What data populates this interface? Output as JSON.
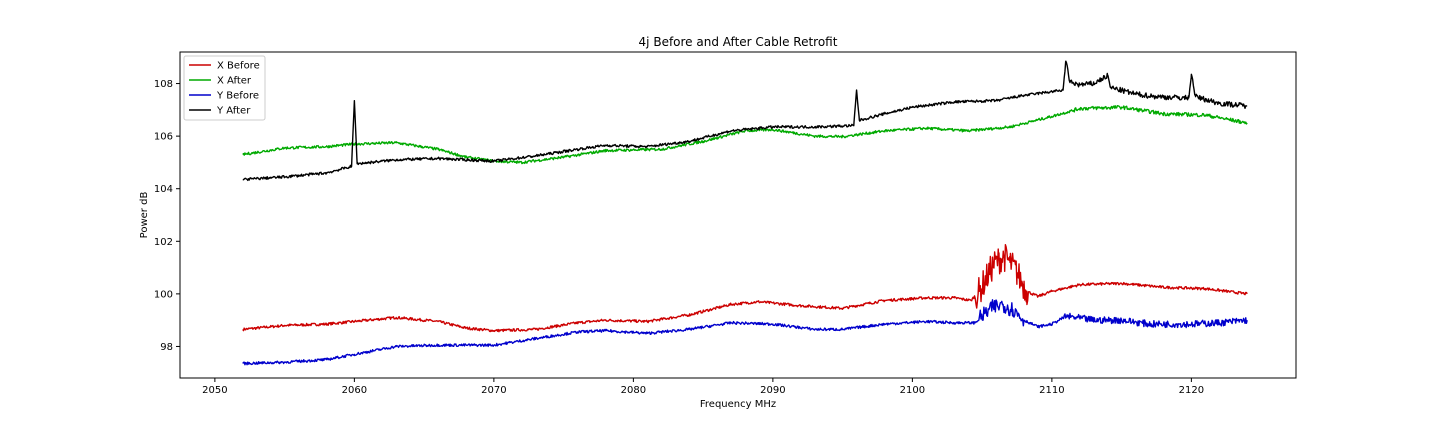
{
  "chart_data": {
    "type": "line",
    "title": "4j Before and After Cable Retrofit",
    "xlabel": "Frequency MHz",
    "ylabel": "Power dB",
    "xlim": [
      2047.5,
      2127.5
    ],
    "ylim": [
      96.8,
      109.2
    ],
    "xticks": [
      2050,
      2060,
      2070,
      2080,
      2090,
      2100,
      2110,
      2120
    ],
    "yticks": [
      98,
      100,
      102,
      104,
      106,
      108
    ],
    "grid": false,
    "legend_position": "upper-left",
    "series": [
      {
        "name": "X Before",
        "color": "#cc0000",
        "points": [
          [
            2052,
            98.65
          ],
          [
            2055,
            98.8
          ],
          [
            2058,
            98.85
          ],
          [
            2060,
            98.95
          ],
          [
            2063,
            99.1
          ],
          [
            2066,
            98.95
          ],
          [
            2068,
            98.7
          ],
          [
            2070,
            98.6
          ],
          [
            2073,
            98.65
          ],
          [
            2076,
            98.9
          ],
          [
            2078,
            99.0
          ],
          [
            2081,
            98.95
          ],
          [
            2084,
            99.2
          ],
          [
            2087,
            99.6
          ],
          [
            2089,
            99.7
          ],
          [
            2092,
            99.55
          ],
          [
            2095,
            99.45
          ],
          [
            2098,
            99.75
          ],
          [
            2101,
            99.85
          ],
          [
            2103,
            99.85
          ],
          [
            2104.2,
            99.75
          ],
          [
            2104.8,
            100.1
          ],
          [
            2105.3,
            100.6
          ],
          [
            2105.8,
            101.1
          ],
          [
            2106.2,
            101.3
          ],
          [
            2106.6,
            101.4
          ],
          [
            2107,
            101.2
          ],
          [
            2107.5,
            100.8
          ],
          [
            2108.2,
            100.1
          ],
          [
            2109,
            99.9
          ],
          [
            2110,
            100.1
          ],
          [
            2112,
            100.35
          ],
          [
            2115,
            100.4
          ],
          [
            2118,
            100.25
          ],
          [
            2121,
            100.2
          ],
          [
            2124,
            100.0
          ]
        ]
      },
      {
        "name": "X After",
        "color": "#00aa00",
        "points": [
          [
            2052,
            105.3
          ],
          [
            2055,
            105.55
          ],
          [
            2058,
            105.6
          ],
          [
            2060,
            105.7
          ],
          [
            2063,
            105.75
          ],
          [
            2066,
            105.5
          ],
          [
            2068,
            105.2
          ],
          [
            2070,
            105.05
          ],
          [
            2072,
            105.0
          ],
          [
            2075,
            105.2
          ],
          [
            2078,
            105.45
          ],
          [
            2082,
            105.5
          ],
          [
            2085,
            105.8
          ],
          [
            2088,
            106.2
          ],
          [
            2090,
            106.25
          ],
          [
            2093,
            106.0
          ],
          [
            2095,
            105.98
          ],
          [
            2098,
            106.2
          ],
          [
            2101,
            106.3
          ],
          [
            2104,
            106.2
          ],
          [
            2107,
            106.35
          ],
          [
            2110,
            106.75
          ],
          [
            2112,
            107.05
          ],
          [
            2115,
            107.1
          ],
          [
            2118,
            106.85
          ],
          [
            2121,
            106.8
          ],
          [
            2124,
            106.5
          ]
        ]
      },
      {
        "name": "Y Before",
        "color": "#0000cc",
        "points": [
          [
            2052,
            97.35
          ],
          [
            2055,
            97.4
          ],
          [
            2058,
            97.5
          ],
          [
            2060,
            97.7
          ],
          [
            2063,
            98.0
          ],
          [
            2066,
            98.05
          ],
          [
            2070,
            98.05
          ],
          [
            2073,
            98.3
          ],
          [
            2076,
            98.55
          ],
          [
            2078,
            98.6
          ],
          [
            2081,
            98.5
          ],
          [
            2084,
            98.65
          ],
          [
            2087,
            98.9
          ],
          [
            2090,
            98.85
          ],
          [
            2093,
            98.65
          ],
          [
            2095,
            98.65
          ],
          [
            2098,
            98.85
          ],
          [
            2101,
            98.95
          ],
          [
            2103,
            98.9
          ],
          [
            2104.5,
            98.9
          ],
          [
            2105.2,
            99.25
          ],
          [
            2105.8,
            99.5
          ],
          [
            2106.5,
            99.6
          ],
          [
            2107.2,
            99.4
          ],
          [
            2108,
            99.0
          ],
          [
            2109,
            98.75
          ],
          [
            2110,
            98.85
          ],
          [
            2111,
            99.15
          ],
          [
            2113,
            99.0
          ],
          [
            2115,
            99.0
          ],
          [
            2117,
            98.85
          ],
          [
            2120,
            98.85
          ],
          [
            2122,
            98.9
          ],
          [
            2124,
            99.0
          ]
        ]
      },
      {
        "name": "Y After",
        "color": "#000000",
        "points": [
          [
            2052,
            104.35
          ],
          [
            2055,
            104.45
          ],
          [
            2058,
            104.6
          ],
          [
            2059.8,
            104.85
          ],
          [
            2060,
            107.35
          ],
          [
            2060.2,
            104.95
          ],
          [
            2063,
            105.1
          ],
          [
            2066,
            105.15
          ],
          [
            2070,
            105.05
          ],
          [
            2073,
            105.25
          ],
          [
            2076,
            105.5
          ],
          [
            2078,
            105.65
          ],
          [
            2081,
            105.6
          ],
          [
            2084,
            105.8
          ],
          [
            2087,
            106.2
          ],
          [
            2090,
            106.35
          ],
          [
            2093,
            106.35
          ],
          [
            2095.8,
            106.4
          ],
          [
            2096,
            107.75
          ],
          [
            2096.2,
            106.6
          ],
          [
            2098,
            106.85
          ],
          [
            2100,
            107.1
          ],
          [
            2103,
            107.3
          ],
          [
            2106,
            107.35
          ],
          [
            2108,
            107.55
          ],
          [
            2110.8,
            107.75
          ],
          [
            2111,
            108.85
          ],
          [
            2111.3,
            108.05
          ],
          [
            2112,
            107.95
          ],
          [
            2113,
            108.0
          ],
          [
            2114,
            108.3
          ],
          [
            2114.2,
            107.85
          ],
          [
            2116,
            107.6
          ],
          [
            2117.5,
            107.5
          ],
          [
            2119.8,
            107.45
          ],
          [
            2120,
            108.35
          ],
          [
            2120.3,
            107.5
          ],
          [
            2122,
            107.25
          ],
          [
            2124,
            107.15
          ]
        ]
      }
    ]
  }
}
